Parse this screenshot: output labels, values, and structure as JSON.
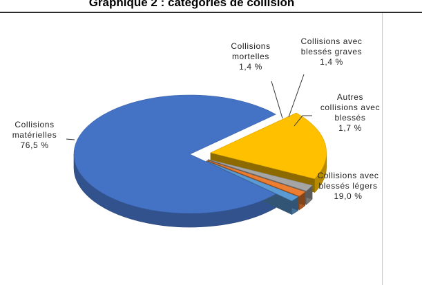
{
  "title": "Graphique 2 : catégories de collision",
  "chart_data": {
    "type": "pie",
    "style": "3d-exploded",
    "slices": [
      {
        "label_lines": [
          "Collisions",
          "matérielles",
          "76,5 %"
        ],
        "value": 76.5,
        "color": "#4472c4"
      },
      {
        "label_lines": [
          "Collisions avec",
          "blessés légers",
          "19,0 %"
        ],
        "value": 19.0,
        "color": "#ffc000"
      },
      {
        "label_lines": [
          "Autres",
          "collisions avec",
          "blessés",
          "1,7 %"
        ],
        "value": 1.7,
        "color": "#a5a5a5"
      },
      {
        "label_lines": [
          "Collisions avec",
          "blessés graves",
          "1,4 %"
        ],
        "value": 1.4,
        "color": "#ed7d31"
      },
      {
        "label_lines": [
          "Collisions",
          "mortelles",
          "1,4 %"
        ],
        "value": 1.4,
        "color": "#5b9bd5"
      }
    ]
  }
}
